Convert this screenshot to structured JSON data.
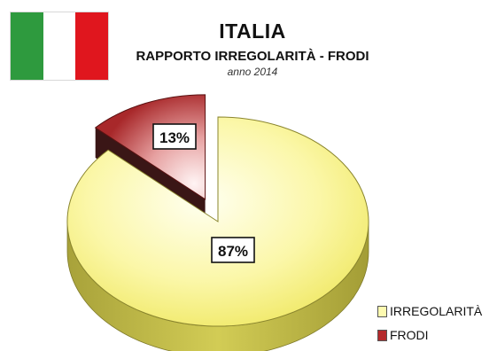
{
  "flag": {
    "name": "Italy flag",
    "colors": [
      "#2e9a3e",
      "#ffffff",
      "#e0161e"
    ]
  },
  "header": {
    "title": "ITALIA",
    "subtitle": "RAPPORTO IRREGOLARITÀ - FRODI",
    "year": "anno 2014"
  },
  "chart_data": {
    "type": "pie",
    "title": "RAPPORTO IRREGOLARITÀ - FRODI",
    "labels": [
      "IRREGOLARITÀ",
      "FRODI"
    ],
    "values": [
      87,
      13
    ],
    "data_labels": [
      "87%",
      "13%"
    ],
    "colors": [
      "#f4f060",
      "#b52a2c"
    ],
    "exploded": "FRODI",
    "style": "3d",
    "legend_position": "bottom-right"
  }
}
